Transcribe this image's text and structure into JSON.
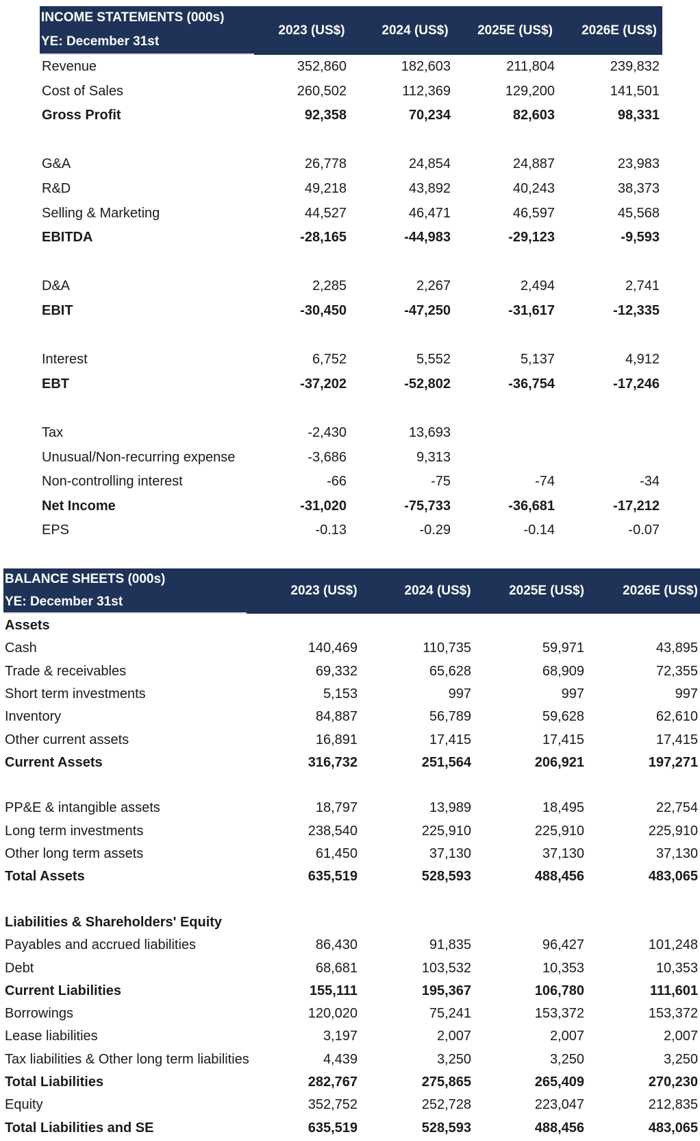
{
  "income": {
    "title": "INCOME STATEMENTS (000s)",
    "subtitle": "YE: December 31st",
    "columns": [
      "2023 (US$)",
      "2024 (US$)",
      "2025E (US$)",
      "2026E (US$)"
    ],
    "rows": [
      {
        "label": "Revenue",
        "values": [
          "352,860",
          "182,603",
          "211,804",
          "239,832"
        ],
        "bold": false
      },
      {
        "label": "Cost of Sales",
        "values": [
          "260,502",
          "112,369",
          "129,200",
          "141,501"
        ],
        "bold": false
      },
      {
        "label": "Gross Profit",
        "values": [
          "92,358",
          "70,234",
          "82,603",
          "98,331"
        ],
        "bold": true
      },
      null,
      {
        "label": "G&A",
        "values": [
          "26,778",
          "24,854",
          "24,887",
          "23,983"
        ],
        "bold": false
      },
      {
        "label": "R&D",
        "values": [
          "49,218",
          "43,892",
          "40,243",
          "38,373"
        ],
        "bold": false
      },
      {
        "label": "Selling & Marketing",
        "values": [
          "44,527",
          "46,471",
          "46,597",
          "45,568"
        ],
        "bold": false
      },
      {
        "label": "EBITDA",
        "values": [
          "-28,165",
          "-44,983",
          "-29,123",
          "-9,593"
        ],
        "bold": true
      },
      null,
      {
        "label": "D&A",
        "values": [
          "2,285",
          "2,267",
          "2,494",
          "2,741"
        ],
        "bold": false
      },
      {
        "label": "EBIT",
        "values": [
          "-30,450",
          "-47,250",
          "-31,617",
          "-12,335"
        ],
        "bold": true
      },
      null,
      {
        "label": "Interest",
        "values": [
          "6,752",
          "5,552",
          "5,137",
          "4,912"
        ],
        "bold": false
      },
      {
        "label": "EBT",
        "values": [
          "-37,202",
          "-52,802",
          "-36,754",
          "-17,246"
        ],
        "bold": true
      },
      null,
      {
        "label": "Tax",
        "values": [
          "-2,430",
          "13,693",
          "",
          ""
        ],
        "bold": false
      },
      {
        "label": "Unusual/Non-recurring expense",
        "values": [
          "-3,686",
          "9,313",
          "",
          ""
        ],
        "bold": false
      },
      {
        "label": "Non-controlling interest",
        "values": [
          "-66",
          "-75",
          "-74",
          "-34"
        ],
        "bold": false
      },
      {
        "label": "Net Income",
        "values": [
          "-31,020",
          "-75,733",
          "-36,681",
          "-17,212"
        ],
        "bold": true
      },
      {
        "label": "EPS",
        "values": [
          "-0.13",
          "-0.29",
          "-0.14",
          "-0.07"
        ],
        "bold": false
      }
    ]
  },
  "balance": {
    "title": "BALANCE SHEETS (000s)",
    "subtitle": "YE: December 31st",
    "columns": [
      "2023 (US$)",
      "2024 (US$)",
      "2025E (US$)",
      "2026E (US$)"
    ],
    "rows": [
      {
        "label": "Assets",
        "values": [
          "",
          "",
          "",
          ""
        ],
        "bold": true
      },
      {
        "label": "Cash",
        "values": [
          "140,469",
          "110,735",
          "59,971",
          "43,895"
        ],
        "bold": false
      },
      {
        "label": "Trade & receivables",
        "values": [
          "69,332",
          "65,628",
          "68,909",
          "72,355"
        ],
        "bold": false
      },
      {
        "label": "Short term investments",
        "values": [
          "5,153",
          "997",
          "997",
          "997"
        ],
        "bold": false
      },
      {
        "label": "Inventory",
        "values": [
          "84,887",
          "56,789",
          "59,628",
          "62,610"
        ],
        "bold": false
      },
      {
        "label": "Other current assets",
        "values": [
          "16,891",
          "17,415",
          "17,415",
          "17,415"
        ],
        "bold": false
      },
      {
        "label": "Current Assets",
        "values": [
          "316,732",
          "251,564",
          "206,921",
          "197,271"
        ],
        "bold": true
      },
      null,
      {
        "label": "PP&E & intangible assets",
        "values": [
          "18,797",
          "13,989",
          "18,495",
          "22,754"
        ],
        "bold": false
      },
      {
        "label": "Long term investments",
        "values": [
          "238,540",
          "225,910",
          "225,910",
          "225,910"
        ],
        "bold": false
      },
      {
        "label": "Other long term assets",
        "values": [
          "61,450",
          "37,130",
          "37,130",
          "37,130"
        ],
        "bold": false
      },
      {
        "label": "Total Assets",
        "values": [
          "635,519",
          "528,593",
          "488,456",
          "483,065"
        ],
        "bold": true
      },
      null,
      {
        "label": "Liabilities & Shareholders' Equity",
        "values": [
          "",
          "",
          "",
          ""
        ],
        "bold": true
      },
      {
        "label": "Payables and accrued liabilities",
        "values": [
          "86,430",
          "91,835",
          "96,427",
          "101,248"
        ],
        "bold": false
      },
      {
        "label": "Debt",
        "values": [
          "68,681",
          "103,532",
          "10,353",
          "10,353"
        ],
        "bold": false
      },
      {
        "label": "Current Liabilities",
        "values": [
          "155,111",
          "195,367",
          "106,780",
          "111,601"
        ],
        "bold": true
      },
      {
        "label": "Borrowings",
        "values": [
          "120,020",
          "75,241",
          "153,372",
          "153,372"
        ],
        "bold": false
      },
      {
        "label": "Lease liabilities",
        "values": [
          "3,197",
          "2,007",
          "2,007",
          "2,007"
        ],
        "bold": false
      },
      {
        "label": "Tax liabilities & Other long term liabilities",
        "values": [
          "4,439",
          "3,250",
          "3,250",
          "3,250"
        ],
        "bold": false
      },
      {
        "label": "Total Liabilities",
        "values": [
          "282,767",
          "275,865",
          "265,409",
          "270,230"
        ],
        "bold": true
      },
      {
        "label": "Equity",
        "values": [
          "352,752",
          "252,728",
          "223,047",
          "212,835"
        ],
        "bold": false
      },
      {
        "label": "Total Liabilities and SE",
        "values": [
          "635,519",
          "528,593",
          "488,456",
          "483,065"
        ],
        "bold": true
      }
    ]
  }
}
